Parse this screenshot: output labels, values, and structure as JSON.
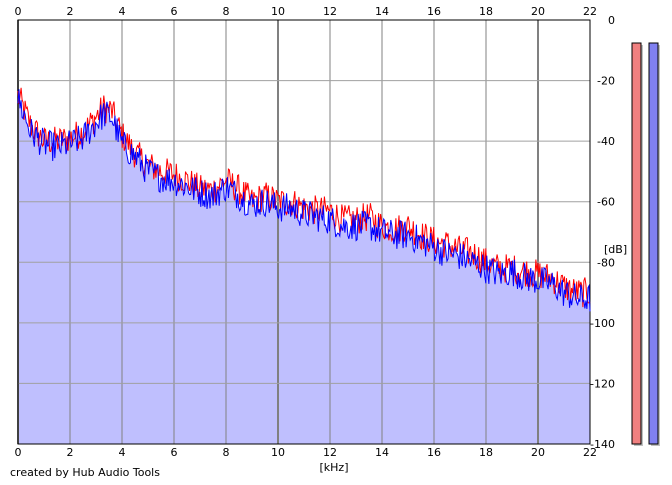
{
  "credit": "created by Hub Audio Tools",
  "chart_data": {
    "type": "area",
    "xlabel": "[kHz]",
    "ylabel": "[dB]",
    "xlim": [
      0,
      22
    ],
    "ylim": [
      -140,
      0
    ],
    "x_ticks": [
      "0",
      "2",
      "4",
      "6",
      "8",
      "10",
      "12",
      "14",
      "16",
      "18",
      "20",
      "22"
    ],
    "y_ticks": [
      "0",
      "-20",
      "-40",
      "-60",
      "-80",
      "-100",
      "-120",
      "-140"
    ],
    "grid": true,
    "series": [
      {
        "color": "#ff0000",
        "x": [
          0.0,
          0.5,
          1.0,
          1.5,
          2.0,
          2.5,
          3.0,
          3.3,
          3.6,
          4.0,
          4.5,
          5.0,
          5.5,
          6.0,
          6.5,
          7.0,
          7.5,
          8.0,
          8.5,
          9.0,
          9.5,
          10.0,
          10.5,
          11.0,
          11.5,
          12.0,
          12.5,
          13.0,
          13.5,
          14.0,
          14.5,
          15.0,
          15.5,
          16.0,
          16.5,
          17.0,
          17.5,
          18.0,
          18.5,
          19.0,
          19.5,
          20.0,
          20.5,
          21.0,
          21.5,
          22.0
        ],
        "y": [
          -25,
          -35,
          -40,
          -40,
          -39,
          -37,
          -32,
          -29,
          -30,
          -38,
          -44,
          -48,
          -50,
          -51,
          -53,
          -56,
          -56,
          -53,
          -56,
          -60,
          -58,
          -60,
          -60,
          -62,
          -63,
          -63,
          -66,
          -66,
          -65,
          -68,
          -69,
          -68,
          -71,
          -73,
          -74,
          -76,
          -77,
          -80,
          -82,
          -82,
          -83,
          -84,
          -85,
          -88,
          -90,
          -90
        ]
      },
      {
        "color": "#0000ff",
        "fill": "#bfbffe",
        "x": [
          0.0,
          0.5,
          1.0,
          1.5,
          2.0,
          2.5,
          3.0,
          3.3,
          3.6,
          4.0,
          4.5,
          5.0,
          5.5,
          6.0,
          6.5,
          7.0,
          7.5,
          8.0,
          8.5,
          9.0,
          9.5,
          10.0,
          10.5,
          11.0,
          11.5,
          12.0,
          12.5,
          13.0,
          13.5,
          14.0,
          14.5,
          15.0,
          15.5,
          16.0,
          16.5,
          17.0,
          17.5,
          18.0,
          18.5,
          19.0,
          19.5,
          20.0,
          20.5,
          21.0,
          21.5,
          22.0
        ],
        "y": [
          -26,
          -37,
          -41,
          -42,
          -41,
          -39,
          -34,
          -31,
          -32,
          -41,
          -45,
          -50,
          -52,
          -53,
          -55,
          -57,
          -58,
          -55,
          -58,
          -61,
          -60,
          -62,
          -62,
          -64,
          -65,
          -66,
          -68,
          -68,
          -68,
          -70,
          -71,
          -71,
          -73,
          -75,
          -77,
          -78,
          -80,
          -82,
          -84,
          -83,
          -85,
          -86,
          -87,
          -90,
          -92,
          -92
        ]
      }
    ],
    "level_meters": [
      {
        "color": "#f08080",
        "level": 1.0
      },
      {
        "color": "#8080f0",
        "level": 1.0
      }
    ]
  }
}
